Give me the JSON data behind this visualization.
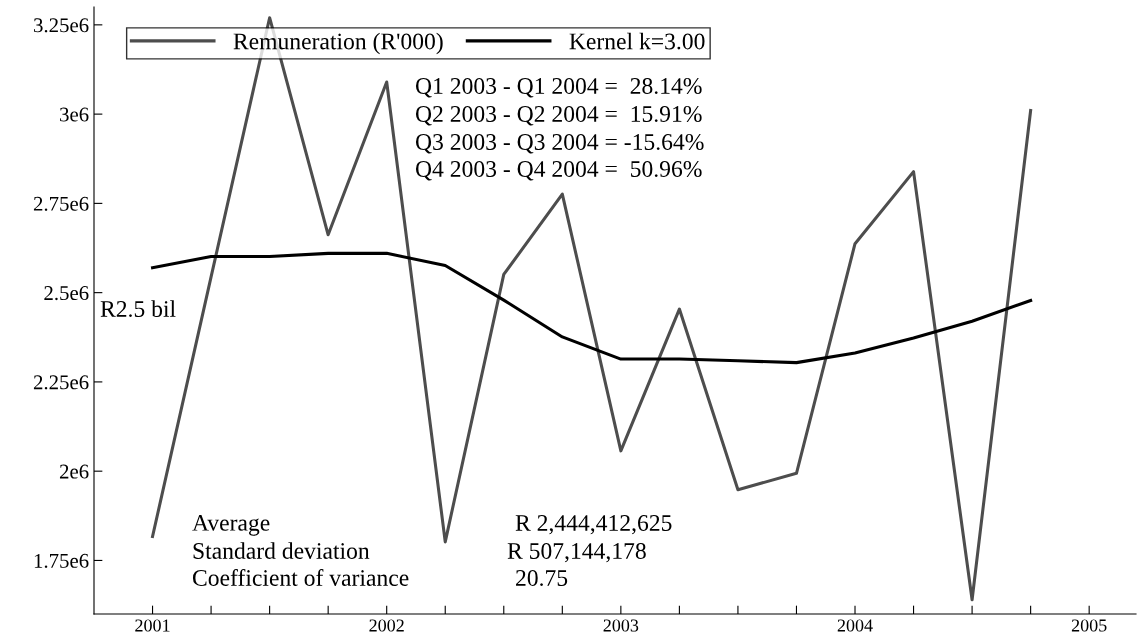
{
  "chart_data": {
    "type": "line",
    "x": [
      2001.0,
      2001.25,
      2001.5,
      2001.75,
      2002.0,
      2002.25,
      2002.5,
      2002.75,
      2003.0,
      2003.25,
      2003.5,
      2003.75,
      2004.0,
      2004.25,
      2004.5,
      2004.75
    ],
    "series": [
      {
        "name": "Remuneration (R'000)",
        "color": "#4d4d4d",
        "values": [
          1817000,
          2544000,
          3270000,
          2662000,
          3090000,
          1802000,
          2551000,
          2776000,
          2057000,
          2454000,
          1948000,
          1994000,
          2637000,
          2839000,
          1640000,
          3010000
        ]
      },
      {
        "name": "Kernel k=3.00",
        "color": "#000000",
        "values": [
          2570000,
          2601000,
          2601000,
          2610000,
          2610000,
          2576000,
          2479000,
          2376000,
          2314000,
          2314000,
          2309000,
          2304000,
          2331000,
          2373000,
          2420000,
          2478000
        ]
      }
    ],
    "xlim": [
      2000.75,
      2005.2
    ],
    "xticks": [
      2001,
      {
        "value": 2001.25,
        "label": null
      },
      {
        "value": 2001.5,
        "label": null
      },
      {
        "value": 2001.75,
        "label": null
      },
      2002,
      {
        "value": 2002.25,
        "label": null
      },
      {
        "value": 2002.5,
        "label": null
      },
      {
        "value": 2002.75,
        "label": null
      },
      2003,
      {
        "value": 2003.25,
        "label": null
      },
      {
        "value": 2003.5,
        "label": null
      },
      {
        "value": 2003.75,
        "label": null
      },
      2004,
      {
        "value": 2004.25,
        "label": null
      },
      {
        "value": 2004.5,
        "label": null
      },
      {
        "value": 2004.75,
        "label": null
      },
      2005
    ],
    "ylim": [
      1600000,
      3300000
    ],
    "yticks": [
      {
        "value": 1750000,
        "label": "1.75e6"
      },
      {
        "value": 2000000,
        "label": "2e6"
      },
      {
        "value": 2250000,
        "label": "2.25e6"
      },
      {
        "value": 2500000,
        "label": "2.5e6"
      },
      {
        "value": 2750000,
        "label": "2.75e6"
      },
      {
        "value": 3000000,
        "label": "3e6"
      },
      {
        "value": 3250000,
        "label": "3.25e6"
      }
    ],
    "annotations": [
      "Q1 2003 - Q1 2004 =  28.14%",
      "Q2 2003 - Q2 2004 =  15.91%",
      "Q3 2003 - Q3 2004 = -15.64%",
      "Q4 2003 - Q4 2004 =  50.96%",
      "R2.5 bil",
      "Average",
      "Standard deviation",
      "Coefficient of variance",
      "R 2,444,412,625",
      "R 507,144,178",
      "20.75"
    ],
    "grid": false,
    "legend": "top left",
    "marker": "none",
    "line_style": "solid"
  }
}
